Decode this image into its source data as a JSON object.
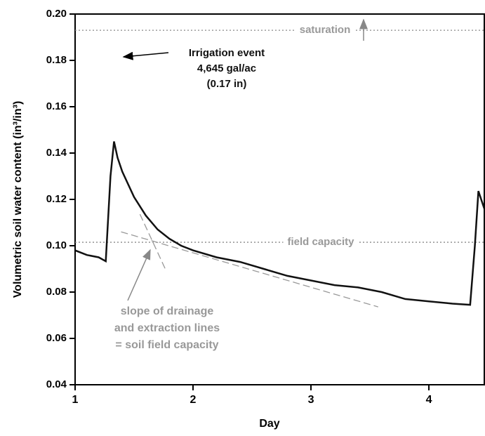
{
  "chart_data": {
    "type": "line",
    "x_label": "Day",
    "y_label": "Volumetric soil water content (in³/in³)",
    "x": [
      1.0,
      1.1,
      1.2,
      1.26,
      1.3,
      1.33,
      1.36,
      1.4,
      1.5,
      1.6,
      1.7,
      1.8,
      1.9,
      2.0,
      2.2,
      2.4,
      2.6,
      2.8,
      3.0,
      3.2,
      3.4,
      3.6,
      3.8,
      4.0,
      4.2,
      4.35,
      4.39,
      4.42,
      4.47
    ],
    "series": [
      {
        "color": "#111111",
        "values": [
          0.098,
          0.096,
          0.095,
          0.0933,
          0.13,
          0.145,
          0.138,
          0.132,
          0.121,
          0.113,
          0.107,
          0.103,
          0.1,
          0.098,
          0.095,
          0.093,
          0.09,
          0.087,
          0.085,
          0.083,
          0.082,
          0.08,
          0.077,
          0.076,
          0.075,
          0.0745,
          0.1,
          0.1236,
          0.116
        ]
      }
    ],
    "xlim": [
      1,
      4.47
    ],
    "xticks": [
      1,
      2,
      3,
      4
    ],
    "ylim": [
      0.04,
      0.2
    ],
    "yticks": [
      0.04,
      0.06,
      0.08,
      {
        "value": 0.1,
        "label": "0.10"
      },
      0.12,
      0.14,
      0.16,
      0.18,
      {
        "value": 0.2,
        "label": "0.20"
      }
    ],
    "reference_lines": [
      {
        "label": "saturation",
        "value": 0.193
      },
      {
        "label": "field capacity",
        "value": 0.1015
      }
    ],
    "tangent_lines": [
      {
        "x": [
          1.39,
          3.57
        ],
        "y": [
          0.106,
          0.0736
        ]
      },
      {
        "x": [
          1.55,
          1.77
        ],
        "y": [
          0.1136,
          0.0894
        ]
      }
    ],
    "annotations": {
      "irrigation": [
        "Irrigation event",
        "4,645 gal/ac",
        "(0.17 in)"
      ],
      "slope": [
        "slope of drainage",
        "and extraction lines",
        "= soil field capacity"
      ]
    }
  }
}
